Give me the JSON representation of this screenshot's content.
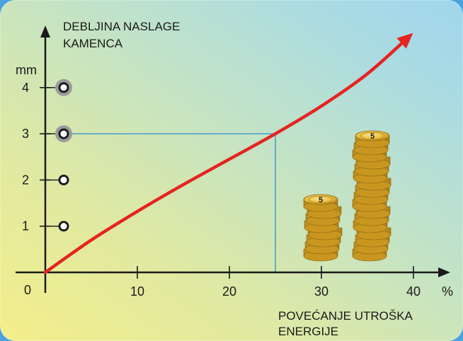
{
  "chart_data": {
    "type": "line",
    "y_title_lines": [
      "DEBLJINA NASLAGE",
      "KAMENCA"
    ],
    "y_unit": "mm",
    "x_title_lines": [
      "POVEĆANJE UTROŠKA",
      "ENERGIJE"
    ],
    "x_unit": "%",
    "origin_label": "0",
    "x_ticks": [
      "10",
      "20",
      "30",
      "40"
    ],
    "y_ticks": [
      "1",
      "2",
      "3",
      "4"
    ],
    "xlim": [
      0,
      44
    ],
    "ylim": [
      0,
      5
    ],
    "series": [
      {
        "x": [
          0,
          5,
          10,
          15,
          20,
          25,
          30,
          35,
          39.5
        ],
        "y": [
          0,
          0.7,
          1.32,
          1.9,
          2.45,
          3.0,
          3.6,
          4.3,
          5.1
        ]
      }
    ],
    "highlight_point": {
      "x": 25,
      "y": 3
    },
    "markers_y": [
      1,
      2,
      3,
      4
    ],
    "highlighted_markers": [
      3,
      4
    ],
    "coin_label": "5",
    "colors": {
      "curve": "#e52421",
      "axis": "#1a1a1a",
      "guide": "#2b8fd0",
      "marker_ring": "#9a9a9a",
      "coin": "#e8b93a"
    },
    "grid": false,
    "decorations": [
      "coin-stack-short",
      "coin-stack-tall"
    ]
  }
}
